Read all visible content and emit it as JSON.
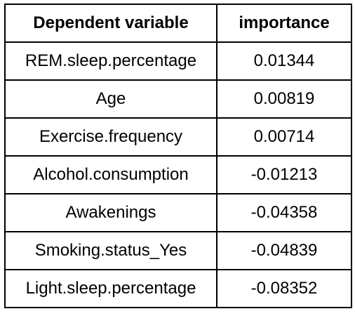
{
  "table": {
    "headers": [
      "Dependent variable",
      "importance"
    ],
    "rows": [
      {
        "variable": "REM.sleep.percentage",
        "importance": "0.01344"
      },
      {
        "variable": "Age",
        "importance": "0.00819"
      },
      {
        "variable": "Exercise.frequency",
        "importance": "0.00714"
      },
      {
        "variable": "Alcohol.consumption",
        "importance": "-0.01213"
      },
      {
        "variable": "Awakenings",
        "importance": "-0.04358"
      },
      {
        "variable": "Smoking.status_Yes",
        "importance": "-0.04839"
      },
      {
        "variable": "Light.sleep.percentage",
        "importance": "-0.08352"
      }
    ]
  }
}
